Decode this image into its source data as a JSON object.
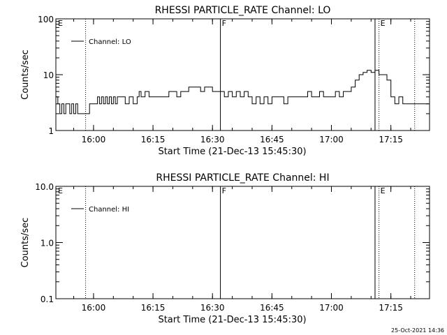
{
  "chart_data": [
    {
      "type": "line",
      "title": "RHESSI PARTICLE_RATE Channel: LO",
      "xlabel": "Start Time (21-Dec-13 15:45:30)",
      "ylabel": "Counts/sec",
      "yscale": "log",
      "ylim": [
        1,
        100
      ],
      "xlim": [
        "15:50:30",
        "17:24:45"
      ],
      "ytick_labels": [
        "1",
        "10",
        "100"
      ],
      "xtick_labels": [
        "16:00",
        "16:15",
        "16:30",
        "16:45",
        "17:00",
        "17:15"
      ],
      "grid": false,
      "legend": "top-left",
      "legend_label": "Channel: LO",
      "series": [
        {
          "name": "Channel: LO",
          "x": [
            "15:50:30",
            "15:51:00",
            "15:51:30",
            "15:52:00",
            "15:52:30",
            "15:53:00",
            "15:53:30",
            "15:54:00",
            "15:54:30",
            "15:55:00",
            "15:55:30",
            "15:56:00",
            "15:56:30",
            "15:57:30",
            "15:58:00",
            "15:59:00",
            "16:00:00",
            "16:00:30",
            "16:01:00",
            "16:01:30",
            "16:02:00",
            "16:02:30",
            "16:03:00",
            "16:03:30",
            "16:04:00",
            "16:04:30",
            "16:05:00",
            "16:05:30",
            "16:06:00",
            "16:07:00",
            "16:08:00",
            "16:09:00",
            "16:10:00",
            "16:11:00",
            "16:11:30",
            "16:12:00",
            "16:12:30",
            "16:13:00",
            "16:14:00",
            "16:15:00",
            "16:16:00",
            "16:17:00",
            "16:18:00",
            "16:19:00",
            "16:20:00",
            "16:21:00",
            "16:22:00",
            "16:23:00",
            "16:24:00",
            "16:25:00",
            "16:26:00",
            "16:27:00",
            "16:28:00",
            "16:29:00",
            "16:30:00",
            "16:31:00",
            "16:32:00",
            "16:33:00",
            "16:34:00",
            "16:35:00",
            "16:36:00",
            "16:37:00",
            "16:38:00",
            "16:39:00",
            "16:40:00",
            "16:41:00",
            "16:42:00",
            "16:43:00",
            "16:44:00",
            "16:45:00",
            "16:46:00",
            "16:47:00",
            "16:48:00",
            "16:49:00",
            "16:50:00",
            "16:51:00",
            "16:52:00",
            "16:53:00",
            "16:54:00",
            "16:55:00",
            "16:56:00",
            "16:57:00",
            "16:58:00",
            "16:59:00",
            "17:00:00",
            "17:01:00",
            "17:02:00",
            "17:03:00",
            "17:04:00",
            "17:05:00",
            "17:06:00",
            "17:07:00",
            "17:08:00",
            "17:09:00",
            "17:10:00",
            "17:11:00",
            "17:12:00",
            "17:13:00",
            "17:14:00",
            "17:15:00",
            "17:16:00",
            "17:17:00",
            "17:18:00",
            "17:19:00",
            "17:20:00",
            "17:21:00",
            "17:22:00",
            "17:23:00",
            "17:24:00"
          ],
          "values": [
            4,
            3,
            2,
            3,
            2,
            3,
            3,
            2,
            3,
            2,
            3,
            2,
            2,
            2,
            2,
            3,
            3,
            3,
            4,
            3,
            4,
            3,
            4,
            3,
            4,
            3,
            4,
            3,
            4,
            4,
            3,
            4,
            3,
            4,
            5,
            4,
            4,
            5,
            4,
            4,
            4,
            4,
            4,
            5,
            5,
            4,
            5,
            5,
            6,
            6,
            6,
            5,
            6,
            6,
            5,
            5,
            5,
            4,
            5,
            4,
            5,
            4,
            5,
            4,
            3,
            4,
            3,
            4,
            3,
            4,
            4,
            4,
            3,
            4,
            4,
            4,
            4,
            4,
            5,
            4,
            4,
            5,
            4,
            4,
            4,
            5,
            4,
            5,
            5,
            6,
            8,
            10,
            11,
            12,
            11,
            12,
            10,
            10,
            8,
            4,
            3,
            4,
            3,
            3,
            3,
            3,
            3,
            3,
            3
          ]
        }
      ],
      "markers": [
        {
          "label": "E",
          "time": "15:45:30",
          "style": "solid"
        },
        {
          "label": "",
          "time": "15:58:00",
          "style": "dotted"
        },
        {
          "label": "F",
          "time": "16:32:00",
          "style": "solid"
        },
        {
          "label": "",
          "time": "17:11:00",
          "style": "solid"
        },
        {
          "label": "E",
          "time": "17:12:00",
          "style": "dotted"
        },
        {
          "label": "",
          "time": "17:21:00",
          "style": "dotted"
        }
      ]
    },
    {
      "type": "line",
      "title": "RHESSI PARTICLE_RATE Channel: HI",
      "xlabel": "Start Time (21-Dec-13 15:45:30)",
      "ylabel": "Counts/sec",
      "yscale": "log",
      "ylim": [
        0.1,
        10
      ],
      "xlim": [
        "15:50:30",
        "17:24:45"
      ],
      "ytick_labels": [
        "0.1",
        "1.0",
        "10.0"
      ],
      "xtick_labels": [
        "16:00",
        "16:15",
        "16:30",
        "16:45",
        "17:00",
        "17:15"
      ],
      "grid": false,
      "legend": "top-left",
      "legend_label": "Channel: HI",
      "series": [
        {
          "name": "Channel: HI",
          "x": [],
          "values": []
        }
      ],
      "markers": [
        {
          "label": "E",
          "time": "15:45:30",
          "style": "solid"
        },
        {
          "label": "",
          "time": "15:58:00",
          "style": "dotted"
        },
        {
          "label": "F",
          "time": "16:32:00",
          "style": "solid"
        },
        {
          "label": "",
          "time": "17:11:00",
          "style": "solid"
        },
        {
          "label": "E",
          "time": "17:12:00",
          "style": "dotted"
        },
        {
          "label": "",
          "time": "17:21:00",
          "style": "dotted"
        }
      ]
    }
  ],
  "timestamp": "25-Oct-2021 14:36"
}
